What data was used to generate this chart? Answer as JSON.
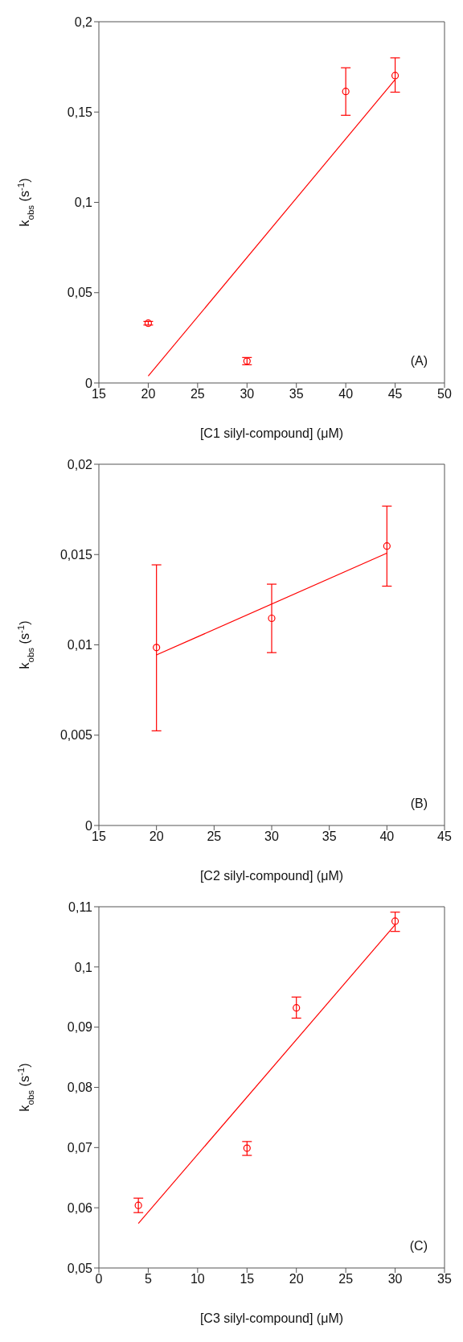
{
  "chart_data": [
    {
      "type": "scatter",
      "xlabel": "[C1 silyl-compound] (μM)",
      "ylabel": "k$_{obs}$ (s$^{-1}$)",
      "annotations": [
        "(A)"
      ],
      "xlim": [
        15,
        50
      ],
      "xticks": [
        15,
        20,
        25,
        30,
        35,
        40,
        45,
        50
      ],
      "ylim": [
        0,
        0.2
      ],
      "yticks": [
        0,
        {
          "value": 0.05,
          "label": "0,05"
        },
        {
          "value": 0.1,
          "label": "0,1"
        },
        {
          "value": 0.15,
          "label": "0,15"
        },
        {
          "value": 0.2,
          "label": "0,2"
        }
      ],
      "series": [
        {
          "marker": "circle",
          "color": "#ff0000",
          "x": [
            20,
            30,
            40,
            45
          ],
          "values": [
            0.0331,
            0.0121,
            0.1614,
            0.1702
          ],
          "errors": [
            0.001,
            0.002,
            [
              0.1482,
              0.1745
            ],
            [
              0.161,
              0.18
            ]
          ]
        },
        {
          "type": "line",
          "marker": "none",
          "color": "#ff0000",
          "x": [
            20,
            45
          ],
          "values": [
            0.0038,
            0.168
          ]
        }
      ]
    },
    {
      "type": "scatter",
      "xlabel": "[C2 silyl-compound] (μM)",
      "ylabel": "k$_{obs}$ (s$^{-1}$)",
      "annotations": [
        "(B)"
      ],
      "xlim": [
        15,
        45
      ],
      "xticks": [
        15,
        20,
        25,
        30,
        35,
        40,
        45
      ],
      "ylim": [
        0,
        0.02
      ],
      "yticks": [
        0,
        {
          "value": 0.005,
          "label": "0,005"
        },
        {
          "value": 0.01,
          "label": "0,01"
        },
        {
          "value": 0.015,
          "label": "0,015"
        },
        {
          "value": 0.02,
          "label": "0,02"
        }
      ],
      "series": [
        {
          "marker": "circle",
          "color": "#ff0000",
          "x": [
            20,
            30,
            40
          ],
          "values": [
            0.00985,
            0.01147,
            0.01547
          ],
          "errors": [
            [
              0.00524,
              0.01443
            ],
            [
              0.00957,
              0.01336
            ],
            [
              0.01325,
              0.01768
            ]
          ]
        },
        {
          "type": "line",
          "marker": "none",
          "color": "#ff0000",
          "x": [
            20,
            40
          ],
          "values": [
            0.00944,
            0.01508
          ]
        }
      ]
    },
    {
      "type": "scatter",
      "xlabel": "[C3 silyl-compound] (μM)",
      "ylabel": "k$_{obs}$ (s$^{-1}$)",
      "annotations": [
        "(C)"
      ],
      "xlim": [
        0,
        35
      ],
      "xticks": [
        0,
        5,
        10,
        15,
        20,
        25,
        30,
        35
      ],
      "ylim": [
        0.05,
        0.11
      ],
      "yticks": [
        {
          "value": 0.05,
          "label": "0,05"
        },
        {
          "value": 0.06,
          "label": "0,06"
        },
        {
          "value": 0.07,
          "label": "0,07"
        },
        {
          "value": 0.08,
          "label": "0,08"
        },
        {
          "value": 0.09,
          "label": "0,09"
        },
        {
          "value": 0.1,
          "label": "0,1"
        },
        {
          "value": 0.11,
          "label": "0,11"
        }
      ],
      "series": [
        {
          "marker": "circle",
          "color": "#ff0000",
          "x": [
            4,
            15,
            20,
            30
          ],
          "values": [
            0.0604,
            0.0699,
            0.0932,
            0.1076
          ],
          "errors": [
            [
              0.0592,
              0.0616
            ],
            [
              0.0687,
              0.071
            ],
            [
              0.0915,
              0.095
            ],
            [
              0.1059,
              0.1091
            ]
          ]
        },
        {
          "type": "line",
          "marker": "none",
          "color": "#ff0000",
          "x": [
            4,
            30
          ],
          "values": [
            0.0574,
            0.107
          ]
        }
      ]
    }
  ]
}
